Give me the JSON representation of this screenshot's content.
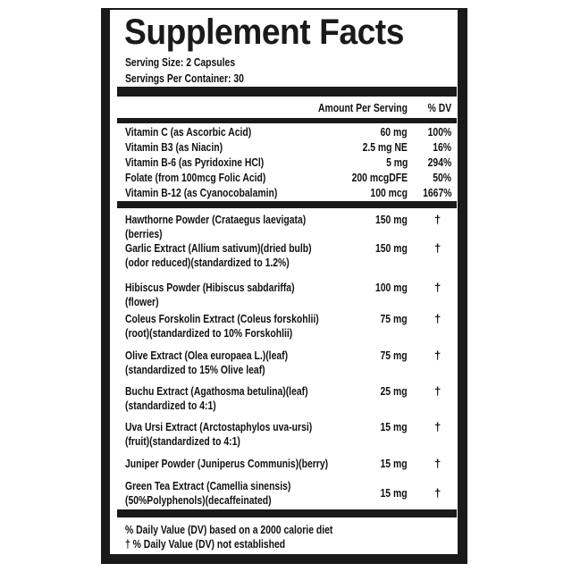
{
  "title": "Supplement Facts",
  "serving_size": "Serving Size: 2 Capsules",
  "servings_per_container": "Servings Per Container: 30",
  "header": {
    "amount": "Amount Per Serving",
    "dv": "% DV"
  },
  "vitamins": [
    {
      "name": "Vitamin C  (as Ascorbic Acid)",
      "amount": "60 mg",
      "dv": "100%"
    },
    {
      "name": "Vitamin B3 (as Niacin)",
      "amount": "2.5 mg NE",
      "dv": "16%"
    },
    {
      "name": "Vitamin B-6 (as Pyridoxine HCl)",
      "amount": "5 mg",
      "dv": "294%"
    },
    {
      "name": "Folate (from 100mcg Folic Acid)",
      "amount": "200 mcgDFE",
      "dv": "50%"
    },
    {
      "name": "Vitamin B-12 (as Cyanocobalamin)",
      "amount": "100 mcg",
      "dv": "1667%"
    }
  ],
  "ingredients": [
    {
      "line1": "Hawthorne Powder (Crataegus laevigata)",
      "line2": "(berries)",
      "amount": "150 mg",
      "dv": "†"
    },
    {
      "line1": "Garlic Extract (Allium sativum)(dried bulb)",
      "line2": "(odor reduced)(standardized to 1.2%)",
      "amount": "150 mg",
      "dv": "†"
    },
    {
      "line1": "Hibiscus Powder (Hibiscus sabdariffa)",
      "line2": "(flower)",
      "amount": "100 mg",
      "dv": "†"
    },
    {
      "line1": "Coleus Forskolin Extract (Coleus forskohlii)",
      "line2": "(root)(standardized to 10% Forskohlii)",
      "amount": "75 mg",
      "dv": "†"
    },
    {
      "line1": "Olive Extract (Olea europaea L.)(leaf)",
      "line2": "(standardized to 15% Olive leaf)",
      "amount": "75 mg",
      "dv": "†"
    },
    {
      "line1": "Buchu Extract (Agathosma betulina)(leaf)",
      "line2": "(standardized to 4:1)",
      "amount": "25 mg",
      "dv": "†"
    },
    {
      "line1": "Uva Ursi Extract (Arctostaphylos uva-ursi)",
      "line2": "(fruit)(standardized to 4:1)",
      "amount": "15 mg",
      "dv": "†"
    },
    {
      "line1": "Juniper Powder (Juniperus Communis)(berry)",
      "line2": "",
      "amount": "15 mg",
      "dv": "†"
    },
    {
      "line1": "Green Tea Extract (Camellia sinensis)",
      "line2": "(50%Polyphenols)(decaffeinated)",
      "amount": "15 mg",
      "dv": "†"
    }
  ],
  "footer": {
    "line1": "% Daily Value (DV) based on a 2000 calorie diet",
    "line2": "† % Daily Value (DV) not established"
  }
}
